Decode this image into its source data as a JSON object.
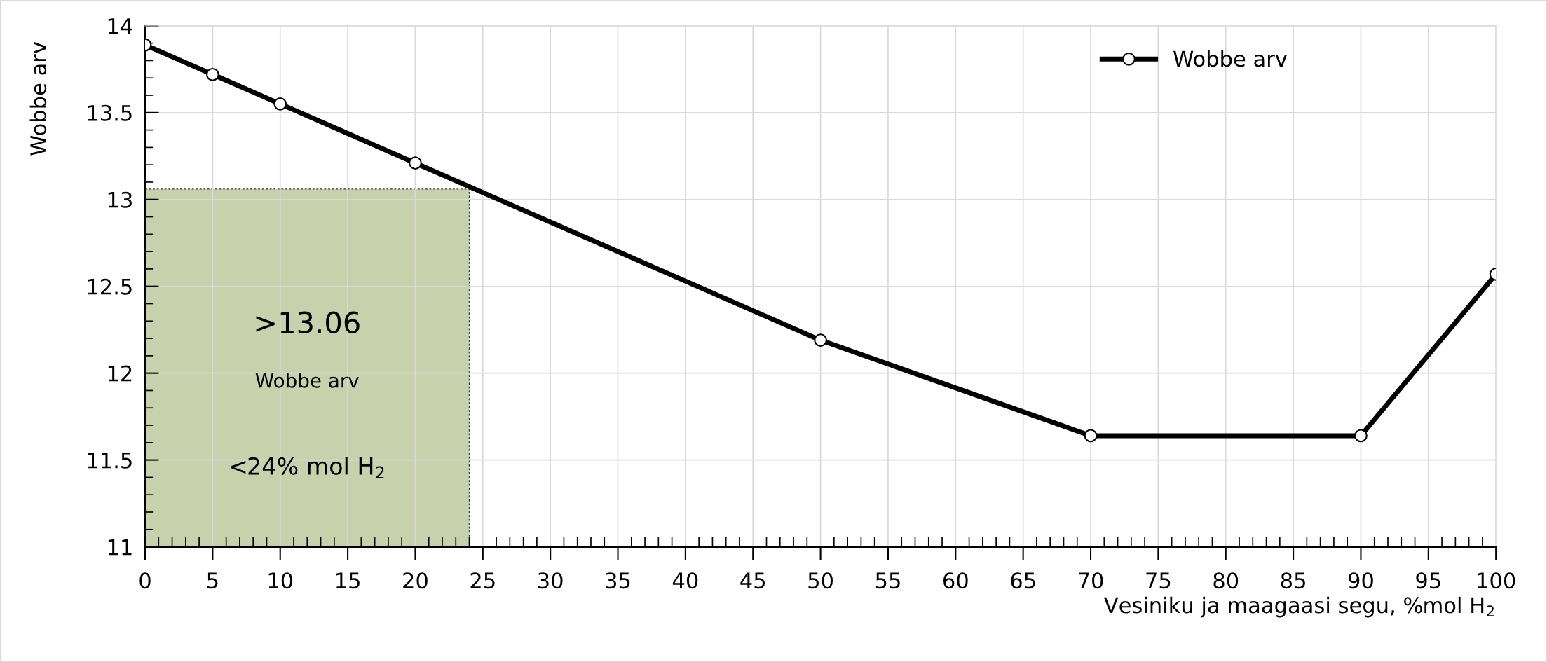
{
  "chart_data": {
    "type": "line",
    "xlabel": "Vesiniku ja maagaasi segu, %mol H$_{2}$",
    "ylabel": "Wobbe arv",
    "x": [
      0,
      5,
      10,
      20,
      50,
      70,
      90,
      100
    ],
    "series": [
      {
        "name": "Wobbe arv",
        "color": "#000000",
        "values": [
          13.89,
          13.72,
          13.55,
          13.21,
          12.19,
          11.64,
          11.64,
          12.57
        ]
      },
      {
        "type": "area",
        "marker": "none",
        "color": "#c4d0a9",
        "x": [
          0,
          24
        ],
        "values": [
          13.06,
          13.06
        ]
      }
    ],
    "annotations": [
      ">13.06",
      "Wobbe arv",
      "<24% mol H$_{2}$"
    ],
    "xlim": [
      0,
      100
    ],
    "xticks": [
      0,
      5,
      10,
      15,
      20,
      25,
      30,
      35,
      40,
      45,
      50,
      55,
      60,
      65,
      70,
      75,
      80,
      85,
      90,
      95,
      100
    ],
    "ylim": [
      11,
      14
    ],
    "yticks": [
      11,
      11.5,
      12,
      12.5,
      13,
      13.5,
      14
    ],
    "grid": true,
    "legend": "top right",
    "marker": "circle",
    "line_style": "solid"
  }
}
